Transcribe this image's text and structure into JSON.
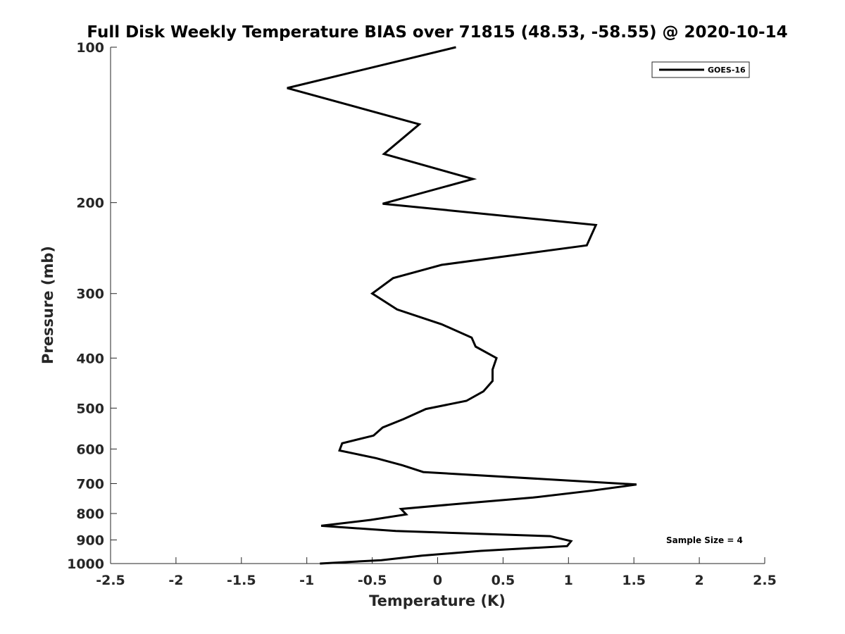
{
  "chart_data": {
    "type": "line",
    "title": "Full Disk Weekly Temperature BIAS over 71815 (48.53, -58.55) @ 2020-10-14",
    "xlabel": "Temperature (K)",
    "ylabel": "Pressure (mb)",
    "xlim": [
      -2.5,
      2.5
    ],
    "ylim": [
      100,
      1000
    ],
    "yscale": "log",
    "yreversed": true,
    "grid": false,
    "legend_position": "top-right",
    "x_ticks": [
      -2.5,
      -2,
      -1.5,
      -1,
      -0.5,
      0,
      0.5,
      1,
      1.5,
      2,
      2.5
    ],
    "x_tick_labels": [
      "-2.5",
      "-2",
      "-1.5",
      "-1",
      "-0.5",
      "0",
      "0.5",
      "1",
      "1.5",
      "2",
      "2.5"
    ],
    "y_ticks": [
      100,
      200,
      300,
      400,
      500,
      600,
      700,
      800,
      900,
      1000
    ],
    "y_tick_labels": [
      "100",
      "200",
      "300",
      "400",
      "500",
      "600",
      "700",
      "800",
      "900",
      "1000"
    ],
    "annotation": "Sample Size = 4",
    "series": [
      {
        "name": "GOES-16",
        "color": "#000000",
        "points": [
          [
            0.14,
            100
          ],
          [
            -1.15,
            120
          ],
          [
            -0.14,
            141
          ],
          [
            -0.41,
            161
          ],
          [
            0.27,
            180
          ],
          [
            -0.42,
            201
          ],
          [
            1.21,
            221
          ],
          [
            1.14,
            242
          ],
          [
            0.03,
            264
          ],
          [
            -0.34,
            280
          ],
          [
            -0.5,
            300
          ],
          [
            -0.31,
            322
          ],
          [
            0.03,
            344
          ],
          [
            0.26,
            365
          ],
          [
            0.29,
            380
          ],
          [
            0.45,
            400
          ],
          [
            0.42,
            421
          ],
          [
            0.42,
            443
          ],
          [
            0.35,
            464
          ],
          [
            0.22,
            484
          ],
          [
            -0.09,
            502
          ],
          [
            -0.26,
            525
          ],
          [
            -0.42,
            545
          ],
          [
            -0.49,
            565
          ],
          [
            -0.73,
            585
          ],
          [
            -0.75,
            604
          ],
          [
            -0.47,
            625
          ],
          [
            -0.27,
            645
          ],
          [
            -0.11,
            665
          ],
          [
            1.52,
            703
          ],
          [
            1.17,
            723
          ],
          [
            0.73,
            745
          ],
          [
            0.19,
            765
          ],
          [
            -0.28,
            784
          ],
          [
            -0.24,
            803
          ],
          [
            -0.51,
            823
          ],
          [
            -0.89,
            845
          ],
          [
            -0.32,
            865
          ],
          [
            0.86,
            885
          ],
          [
            1.02,
            905
          ],
          [
            0.99,
            925
          ],
          [
            0.33,
            945
          ],
          [
            -0.12,
            965
          ],
          [
            -0.43,
            985
          ],
          [
            -0.9,
            1000
          ]
        ]
      }
    ]
  }
}
